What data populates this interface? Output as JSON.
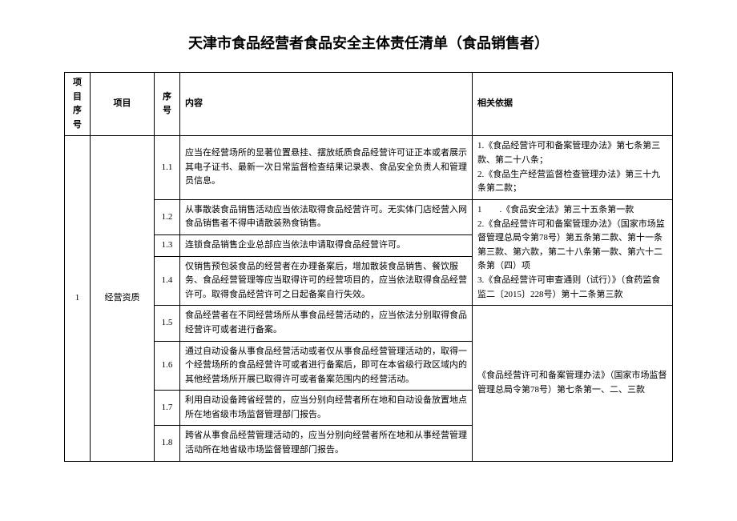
{
  "title": "天津市食品经营者食品安全主体责任清单（食品销售者）",
  "headers": {
    "proj_no": "项目序号",
    "proj": "项目",
    "seq": "序号",
    "content": "内容",
    "basis": "相关依据"
  },
  "proj_no": "1",
  "proj_name": "经营资质",
  "rows": [
    {
      "seq": "1.1",
      "content": "应当在经营场所的显著位置悬挂、摆放纸质食品经营许可证正本或者展示其电子证书、最新一次日常监督检查结果记录表、食品安全负责人和管理员信息。"
    },
    {
      "seq": "1.2",
      "content": "从事散装食品销售活动应当依法取得食品经营许可。无实体门店经营入网食品销售者不得申请散装熟食销售。"
    },
    {
      "seq": "1.3",
      "content": "连锁食品销售企业总部应当依法申请取得食品经营许可。"
    },
    {
      "seq": "1.4",
      "content": "仅销售预包装食品的经营者在办理备案后，增加散装食品销售、餐饮服务、食品经营管理等应当取得许可的经营项目的，应当依法取得食品经营许可。取得食品经营许可之日起备案自行失效。"
    },
    {
      "seq": "1.5",
      "content": "食品经营者在不同经营场所从事食品经营活动的，应当依法分别取得食品经营许可或者进行备案。"
    },
    {
      "seq": "1.6",
      "content": "通过自动设备从事食品经营活动或者仅从事食品经营管理活动的，取得一个经营场所的食品经营许可或者进行备案后，即可在本省级行政区域内的其他经营场所开展已取得许可或者备案范围内的经营活动。"
    },
    {
      "seq": "1.7",
      "content": "利用自动设备跨省经营的，应当分别向经营者所在地和自动设备放置地点所在地省级市场监督管理部门报告。"
    },
    {
      "seq": "1.8",
      "content": "跨省从事食品经营管理活动的，应当分别向经营者所在地和从事经营管理活动所在地省级市场监督管理部门报告。"
    }
  ],
  "basis": {
    "b1": "1.《食品经营许可和备案管理办法》第七条第三款、第二十八条；\n2.《食品生产经营监督检查管理办法》第三十九条第二款；",
    "b2": "1　　.《食品安全法》第三十五条第一款\n2.《食品经营许可和备案管理办法》（国家市场监督管理总局令第78号）第五条第二款、第十一条第三款、第六款，第二十八条第一款、第六十二条第（四）项\n3.《食品经营许可审查通则（试行）》（食药监食监二〔2015〕228号）第十二条第三款",
    "b3": "《食品经营许可和备案管理办法》（国家市场监督管理总局令第78号）第七条第一、二、三款"
  }
}
